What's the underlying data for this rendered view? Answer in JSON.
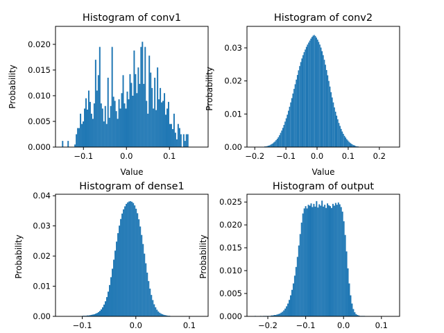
{
  "chart_data": [
    {
      "type": "bar",
      "title": "Histogram of conv1",
      "xlabel": "Value",
      "ylabel": "Probability",
      "xlim": [
        -0.165,
        0.19
      ],
      "ylim": [
        0,
        0.0235
      ],
      "xticks": [
        {
          "value": -0.1,
          "label": "−0.1"
        },
        {
          "value": 0.0,
          "label": "0.0"
        },
        {
          "value": 0.1,
          "label": "0.1"
        }
      ],
      "yticks": [
        {
          "value": 0,
          "label": "0.000"
        },
        {
          "value": 0.005,
          "label": "0.005"
        },
        {
          "value": 0.01,
          "label": "0.010"
        },
        {
          "value": 0.015,
          "label": "0.015"
        },
        {
          "value": 0.02,
          "label": "0.020"
        }
      ],
      "bin_start": -0.15,
      "bin_width": 0.0032,
      "values": [
        0.0012,
        0.0,
        0.0,
        0.0,
        0.0012,
        0.0,
        0.0,
        0.0,
        0.0,
        0.0005,
        0.0025,
        0.0037,
        0.0037,
        0.0065,
        0.0045,
        0.005,
        0.0075,
        0.0095,
        0.0073,
        0.011,
        0.0088,
        0.0065,
        0.0055,
        0.0085,
        0.017,
        0.011,
        0.014,
        0.0195,
        0.0085,
        0.0075,
        0.005,
        0.008,
        0.0045,
        0.0135,
        0.0057,
        0.008,
        0.0195,
        0.0098,
        0.009,
        0.007,
        0.0055,
        0.0093,
        0.0075,
        0.0105,
        0.014,
        0.0085,
        0.0075,
        0.0108,
        0.0093,
        0.0142,
        0.0125,
        0.01,
        0.0188,
        0.0142,
        0.0105,
        0.0155,
        0.0123,
        0.0195,
        0.0205,
        0.0123,
        0.0195,
        0.009,
        0.0065,
        0.0178,
        0.0145,
        0.0115,
        0.0075,
        0.0135,
        0.0072,
        0.0155,
        0.0093,
        0.0115,
        0.0087,
        0.009,
        0.0105,
        0.0063,
        0.0075,
        0.0088,
        0.0045,
        0.0045,
        0.0035,
        0.0065,
        0.0028,
        0.0015,
        0.0045,
        0.0037,
        0.0025,
        0.0,
        0.0025,
        0.0012,
        0.0025,
        0.0025
      ]
    },
    {
      "type": "bar",
      "title": "Histogram of conv2",
      "xlabel": "Value",
      "ylabel": "Probability",
      "xlim": [
        -0.225,
        0.265
      ],
      "ylim": [
        0,
        0.0365
      ],
      "xticks": [
        {
          "value": -0.2,
          "label": "−0.2"
        },
        {
          "value": -0.1,
          "label": "−0.1"
        },
        {
          "value": 0.0,
          "label": "0.0"
        },
        {
          "value": 0.1,
          "label": "0.1"
        },
        {
          "value": 0.2,
          "label": "0.2"
        }
      ],
      "yticks": [
        {
          "value": 0,
          "label": "0.00"
        },
        {
          "value": 0.01,
          "label": "0.01"
        },
        {
          "value": 0.02,
          "label": "0.02"
        },
        {
          "value": 0.03,
          "label": "0.03"
        }
      ],
      "bin_start": -0.18,
      "bin_width": 0.0036,
      "values": [
        0.0001,
        0.0001,
        0.0001,
        0.0002,
        0.0002,
        0.0003,
        0.0004,
        0.0005,
        0.0007,
        0.0009,
        0.0011,
        0.0014,
        0.0017,
        0.0021,
        0.0025,
        0.003,
        0.0036,
        0.0043,
        0.005,
        0.0058,
        0.0067,
        0.0077,
        0.0087,
        0.0098,
        0.011,
        0.0122,
        0.0135,
        0.0148,
        0.0162,
        0.0176,
        0.019,
        0.0204,
        0.0218,
        0.0232,
        0.0245,
        0.0257,
        0.0268,
        0.0278,
        0.0287,
        0.0295,
        0.0303,
        0.031,
        0.0316,
        0.0322,
        0.0328,
        0.0333,
        0.0337,
        0.0339,
        0.0336,
        0.0331,
        0.0325,
        0.0318,
        0.031,
        0.0301,
        0.029,
        0.0278,
        0.0264,
        0.0249,
        0.0233,
        0.0217,
        0.02,
        0.0183,
        0.0166,
        0.015,
        0.0135,
        0.012,
        0.0107,
        0.0095,
        0.0084,
        0.0073,
        0.0064,
        0.0055,
        0.0047,
        0.004,
        0.0034,
        0.0029,
        0.0024,
        0.002,
        0.0016,
        0.0013,
        0.001,
        0.0008,
        0.0006,
        0.0005,
        0.0003,
        0.0002,
        0.0002,
        0.0001,
        0.0001,
        0.0001
      ]
    },
    {
      "type": "bar",
      "title": "Histogram of dense1",
      "xlabel": "",
      "ylabel": "Probability",
      "xlim": [
        -0.15,
        0.135
      ],
      "ylim": [
        0,
        0.0405
      ],
      "xticks": [
        {
          "value": -0.1,
          "label": "−0.1"
        },
        {
          "value": 0.0,
          "label": "0.0"
        },
        {
          "value": 0.1,
          "label": "0.1"
        }
      ],
      "yticks": [
        {
          "value": 0,
          "label": "0.00"
        },
        {
          "value": 0.01,
          "label": "0.01"
        },
        {
          "value": 0.02,
          "label": "0.02"
        },
        {
          "value": 0.03,
          "label": "0.03"
        },
        {
          "value": 0.04,
          "label": "0.04"
        }
      ],
      "bin_start": -0.11,
      "bin_width": 0.0026,
      "values": [
        0.0001,
        0.0001,
        0.0001,
        0.0001,
        0.0002,
        0.0002,
        0.0002,
        0.0003,
        0.0003,
        0.0004,
        0.0005,
        0.0006,
        0.0007,
        0.0009,
        0.0011,
        0.0014,
        0.0018,
        0.0023,
        0.003,
        0.0039,
        0.005,
        0.0064,
        0.0082,
        0.0104,
        0.013,
        0.0158,
        0.0188,
        0.0218,
        0.0248,
        0.0276,
        0.0301,
        0.0323,
        0.0341,
        0.0355,
        0.0365,
        0.0373,
        0.0378,
        0.0381,
        0.0382,
        0.038,
        0.0376,
        0.0368,
        0.0357,
        0.0342,
        0.0322,
        0.0298,
        0.027,
        0.024,
        0.0208,
        0.0176,
        0.0145,
        0.0117,
        0.0092,
        0.0071,
        0.0054,
        0.004,
        0.003,
        0.0022,
        0.0016,
        0.0012,
        0.0009,
        0.0007,
        0.0005,
        0.0004,
        0.0003,
        0.0002,
        0.0002,
        0.0001,
        0.0001,
        0.0001,
        0.0001,
        0.0001,
        0.0001,
        0.0001
      ]
    },
    {
      "type": "bar",
      "title": "Histogram of output",
      "xlabel": "",
      "ylabel": "Probability",
      "xlim": [
        -0.255,
        0.148
      ],
      "ylim": [
        0,
        0.0267
      ],
      "xticks": [
        {
          "value": -0.2,
          "label": "−0.2"
        },
        {
          "value": -0.1,
          "label": "−0.1"
        },
        {
          "value": 0.0,
          "label": "0.0"
        },
        {
          "value": 0.1,
          "label": "0.1"
        }
      ],
      "yticks": [
        {
          "value": 0,
          "label": "0.000"
        },
        {
          "value": 0.005,
          "label": "0.005"
        },
        {
          "value": 0.01,
          "label": "0.010"
        },
        {
          "value": 0.015,
          "label": "0.015"
        },
        {
          "value": 0.02,
          "label": "0.020"
        },
        {
          "value": 0.025,
          "label": "0.025"
        }
      ],
      "bin_start": -0.235,
      "bin_width": 0.0036,
      "values": [
        0.0001,
        0.0,
        0.0,
        0.0,
        0.0001,
        0.0,
        0.0001,
        0.0001,
        0.0001,
        0.0001,
        0.0001,
        0.0001,
        0.0002,
        0.0002,
        0.0003,
        0.0003,
        0.0004,
        0.0005,
        0.0006,
        0.0008,
        0.001,
        0.0013,
        0.0017,
        0.0022,
        0.0028,
        0.0036,
        0.0046,
        0.0058,
        0.0072,
        0.0089,
        0.0108,
        0.013,
        0.0155,
        0.018,
        0.0205,
        0.0225,
        0.0236,
        0.0241,
        0.0236,
        0.0244,
        0.0242,
        0.0247,
        0.0239,
        0.0246,
        0.024,
        0.0252,
        0.0238,
        0.0245,
        0.0242,
        0.0253,
        0.024,
        0.0244,
        0.0237,
        0.0247,
        0.0243,
        0.0241,
        0.0237,
        0.0246,
        0.0242,
        0.0248,
        0.0244,
        0.0249,
        0.0245,
        0.0239,
        0.0229,
        0.0208,
        0.0178,
        0.0142,
        0.0105,
        0.0072,
        0.0046,
        0.0028,
        0.0016,
        0.0009,
        0.0005,
        0.0003,
        0.0002,
        0.0001,
        0.0001,
        0.0001,
        0.0001
      ]
    }
  ]
}
